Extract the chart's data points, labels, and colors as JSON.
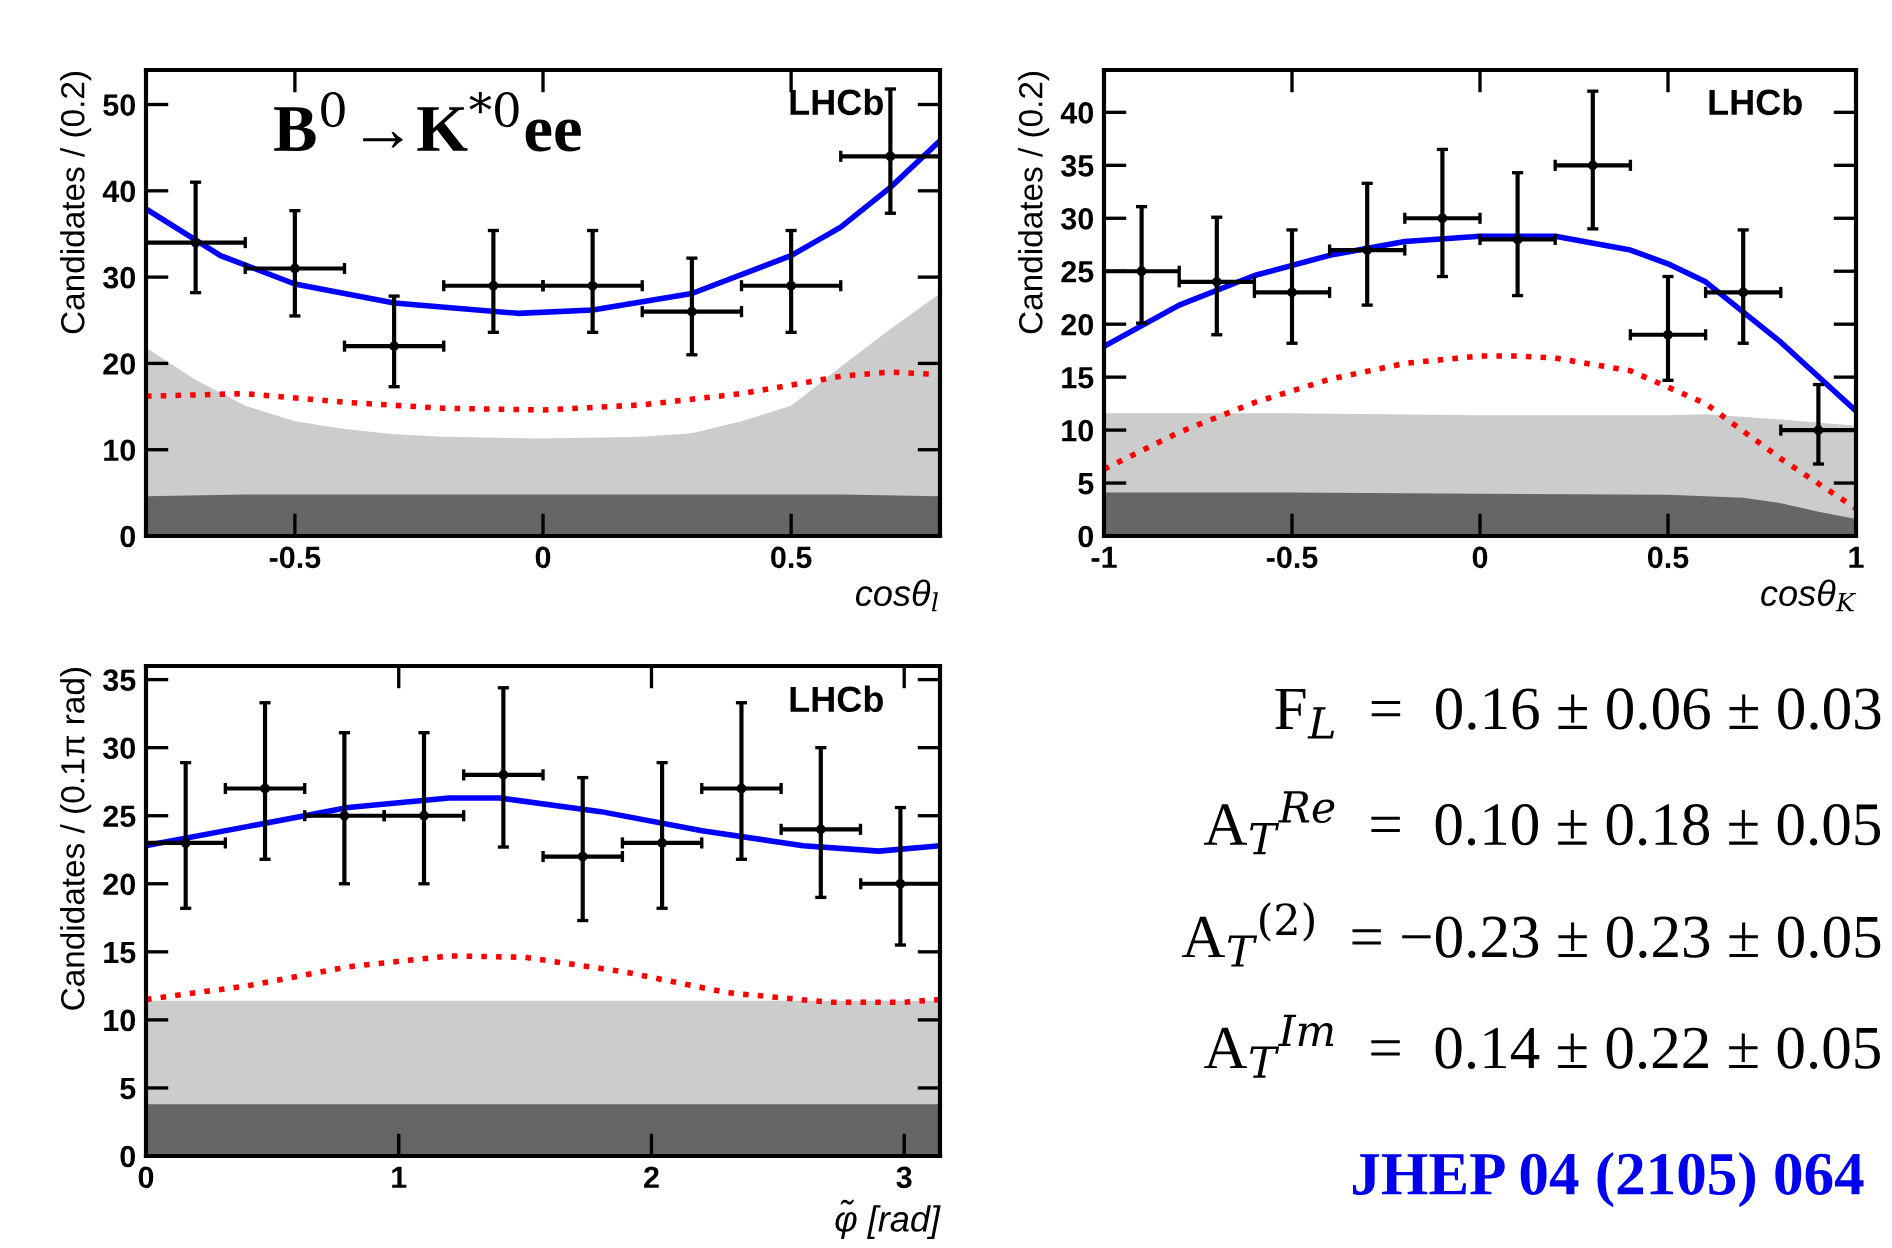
{
  "chart_data": [
    {
      "type": "scatter",
      "xlabel": "cosθ$_{l}$",
      "ylabel": "Candidates / (0.2)",
      "xlim": [
        -0.8,
        0.8
      ],
      "ylim": [
        0,
        54
      ],
      "xticks": [
        -0.5,
        0,
        0.5
      ],
      "yticks": [
        0,
        10,
        20,
        30,
        40,
        50
      ],
      "annotations": [
        "LHCb",
        "B$^{0}$→K$^{*0}$ee"
      ],
      "series": [
        {
          "type": "area",
          "color": "#cccccc",
          "x": [
            -0.8,
            -0.7,
            -0.6,
            -0.5,
            -0.4,
            -0.3,
            -0.2,
            0,
            0.2,
            0.3,
            0.4,
            0.5,
            0.6,
            0.7,
            0.8
          ],
          "values": [
            21.8,
            18.1,
            15.1,
            13.3,
            12.4,
            11.8,
            11.5,
            11.3,
            11.5,
            11.9,
            13.3,
            15.1,
            19.6,
            24,
            28.1
          ]
        },
        {
          "type": "area",
          "color": "#666666",
          "x": [
            -0.8,
            -0.6,
            -0.3,
            0,
            0.3,
            0.6,
            0.8
          ],
          "values": [
            4.6,
            4.8,
            4.8,
            4.8,
            4.8,
            4.8,
            4.6
          ]
        },
        {
          "type": "line",
          "color": "#ff0000",
          "line_style": "dotted",
          "x": [
            -0.8,
            -0.6,
            -0.4,
            -0.2,
            0,
            0.2,
            0.4,
            0.6,
            0.7,
            0.8
          ],
          "values": [
            16.2,
            16.5,
            15.5,
            14.8,
            14.6,
            15.2,
            16.5,
            18.5,
            19,
            18.7
          ]
        },
        {
          "type": "line",
          "color": "#0000ff",
          "line_style": "solid",
          "x": [
            -0.8,
            -0.65,
            -0.5,
            -0.3,
            -0.05,
            0.1,
            0.3,
            0.5,
            0.6,
            0.7,
            0.8
          ],
          "values": [
            37.9,
            32.5,
            29.2,
            27,
            25.8,
            26.2,
            28.1,
            32.5,
            35.8,
            40.4,
            45.8
          ]
        },
        {
          "type": "scatter",
          "color": "#000000",
          "x": [
            -0.7,
            -0.5,
            -0.3,
            -0.1,
            0.1,
            0.3,
            0.5,
            0.7
          ],
          "values": [
            34,
            31,
            22,
            29,
            29,
            26,
            29,
            44
          ],
          "errors": [
            [
              28.2,
              41
            ],
            [
              25.5,
              37.7
            ],
            [
              17.3,
              27.8
            ],
            [
              23.6,
              35.4
            ],
            [
              23.6,
              35.4
            ],
            [
              21,
              32.2
            ],
            [
              23.6,
              35.4
            ],
            [
              37.4,
              51.8
            ]
          ],
          "xerrors": [
            0.1,
            0.1,
            0.1,
            0.1,
            0.1,
            0.1,
            0.1,
            0.1
          ]
        }
      ]
    },
    {
      "type": "scatter",
      "xlabel": "cosθ$_{K}$",
      "ylabel": "Candidates / (0.2)",
      "xlim": [
        -1,
        1
      ],
      "ylim": [
        0,
        44
      ],
      "xticks": [
        -1,
        -0.5,
        0,
        0.5,
        1
      ],
      "yticks": [
        0,
        5,
        10,
        15,
        20,
        25,
        30,
        35,
        40
      ],
      "annotations": [
        "LHCb"
      ],
      "series": [
        {
          "type": "area",
          "color": "#cccccc",
          "x": [
            -1,
            -0.5,
            0,
            0.5,
            0.6,
            0.8,
            1
          ],
          "values": [
            11.6,
            11.6,
            11.4,
            11.4,
            11.5,
            11,
            10.4
          ]
        },
        {
          "type": "area",
          "color": "#666666",
          "x": [
            -1,
            -0.5,
            0,
            0.5,
            0.7,
            0.8,
            0.9,
            1
          ],
          "values": [
            4.1,
            4.1,
            4,
            3.9,
            3.6,
            3.1,
            2.3,
            1.6
          ]
        },
        {
          "type": "line",
          "color": "#ff0000",
          "line_style": "dotted",
          "x": [
            -1,
            -0.8,
            -0.6,
            -0.4,
            -0.2,
            0,
            0.1,
            0.2,
            0.4,
            0.6,
            0.8,
            1
          ],
          "values": [
            6.3,
            9.8,
            12.6,
            14.8,
            16.3,
            17,
            17,
            16.8,
            15.6,
            12.5,
            7.3,
            2.6
          ]
        },
        {
          "type": "line",
          "color": "#0000ff",
          "line_style": "solid",
          "x": [
            -1,
            -0.8,
            -0.6,
            -0.4,
            -0.2,
            0,
            0.2,
            0.4,
            0.5,
            0.6,
            0.8,
            1
          ],
          "values": [
            17.9,
            21.8,
            24.6,
            26.5,
            27.8,
            28.3,
            28.3,
            27,
            25.7,
            24,
            18.3,
            11.8
          ]
        },
        {
          "type": "scatter",
          "color": "#000000",
          "x": [
            -0.9,
            -0.7,
            -0.5,
            -0.3,
            -0.1,
            0.1,
            0.3,
            0.5,
            0.7,
            0.9
          ],
          "values": [
            25,
            24,
            23,
            27,
            30,
            28,
            35,
            19,
            23,
            10
          ],
          "errors": [
            [
              20.1,
              31.1
            ],
            [
              19,
              30.1
            ],
            [
              18.2,
              28.9
            ],
            [
              21.8,
              33.3
            ],
            [
              24.5,
              36.5
            ],
            [
              22.7,
              34.3
            ],
            [
              29,
              42
            ],
            [
              14.7,
              24.5
            ],
            [
              18.2,
              28.9
            ],
            [
              6.8,
              14.3
            ]
          ],
          "xerrors": [
            0.1,
            0.1,
            0.1,
            0.1,
            0.1,
            0.1,
            0.1,
            0.1,
            0.1,
            0.1
          ]
        }
      ]
    },
    {
      "type": "scatter",
      "xlabel": "φ̃ [rad]",
      "ylabel": "Candidates / (0.1π rad)",
      "xlim": [
        0,
        3.1416
      ],
      "ylim": [
        0,
        36
      ],
      "xticks": [
        0,
        1,
        2,
        3
      ],
      "yticks": [
        0,
        5,
        10,
        15,
        20,
        25,
        30,
        35
      ],
      "annotations": [
        "LHCb"
      ],
      "series": [
        {
          "type": "area",
          "color": "#cccccc",
          "x": [
            0,
            1,
            2,
            3.1416
          ],
          "values": [
            11.4,
            11.4,
            11.4,
            11.4
          ]
        },
        {
          "type": "area",
          "color": "#666666",
          "x": [
            0,
            1,
            2,
            3.1416
          ],
          "values": [
            3.8,
            3.8,
            3.8,
            3.8
          ]
        },
        {
          "type": "line",
          "color": "#ff0000",
          "line_style": "dotted",
          "x": [
            0,
            0.4,
            0.8,
            1.2,
            1.5,
            1.9,
            2.3,
            2.7,
            3,
            3.1416
          ],
          "values": [
            11.5,
            12.5,
            13.9,
            14.7,
            14.6,
            13.5,
            12,
            11.3,
            11.3,
            11.5
          ]
        },
        {
          "type": "line",
          "color": "#0000ff",
          "line_style": "solid",
          "x": [
            0,
            0.4,
            0.8,
            1.2,
            1.4,
            1.8,
            2.2,
            2.6,
            2.9,
            3.1416
          ],
          "values": [
            22.8,
            24.2,
            25.6,
            26.3,
            26.3,
            25.3,
            23.9,
            22.8,
            22.4,
            22.8
          ]
        },
        {
          "type": "scatter",
          "color": "#000000",
          "x": [
            0.157,
            0.471,
            0.785,
            1.1,
            1.414,
            1.728,
            2.042,
            2.356,
            2.67,
            2.985
          ],
          "values": [
            23,
            27,
            25,
            25,
            28,
            22,
            23,
            27,
            24,
            20
          ],
          "errors": [
            [
              18.2,
              28.9
            ],
            [
              21.8,
              33.3
            ],
            [
              20,
              31.1
            ],
            [
              20,
              31.1
            ],
            [
              22.7,
              34.4
            ],
            [
              17.3,
              27.8
            ],
            [
              18.2,
              28.9
            ],
            [
              21.8,
              33.3
            ],
            [
              19,
              30
            ],
            [
              15.5,
              25.6
            ]
          ],
          "xerrors": [
            0.157,
            0.157,
            0.157,
            0.157,
            0.157,
            0.157,
            0.157,
            0.157,
            0.157,
            0.157
          ]
        }
      ]
    },
    {
      "type": "other",
      "annotations": [
        "F$_{L}$  =  0.16 ± 0.06 ± 0.03",
        "A$_{T}$$^{Re}$  =  0.10 ± 0.18 ± 0.05",
        "A$_{T}$$^{(2)}$  = −0.23 ± 0.23 ± 0.05",
        "A$_{T}$$^{Im}$  =  0.14 ± 0.22 ± 0.05",
        "JHEP 04 (2105) 064"
      ]
    }
  ]
}
